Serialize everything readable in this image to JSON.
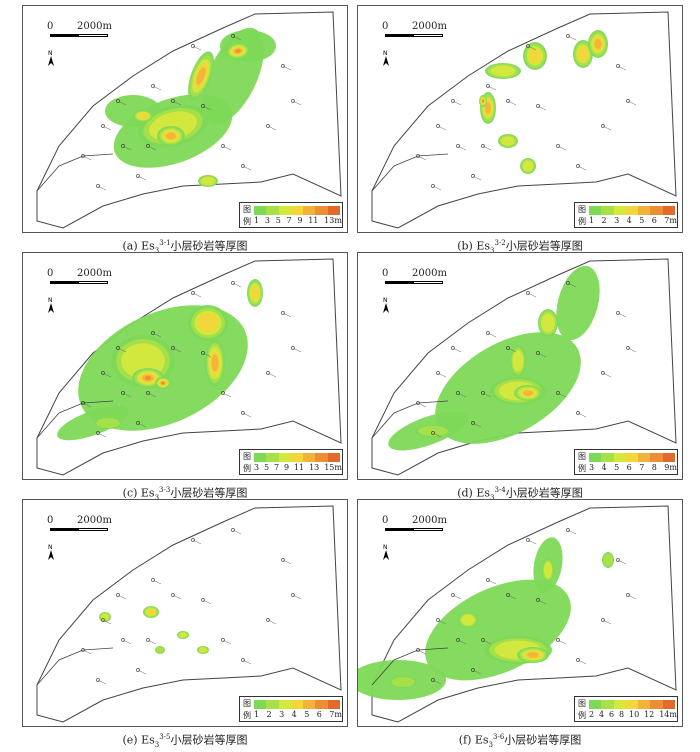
{
  "scale": {
    "zero": "0",
    "distance": "2000m"
  },
  "legend_title": {
    "line1": "图",
    "line2": "例"
  },
  "colors": {
    "ramp": [
      "#7ed957",
      "#a8e04a",
      "#d4e83e",
      "#f2d63a",
      "#f2b23a",
      "#ee8e34",
      "#e46a2b",
      "#d7432a"
    ]
  },
  "panels": [
    {
      "id": "a",
      "caption": {
        "prefix": "(a) Es",
        "sub": "3",
        "sup": "3-1",
        "suffix": "小层砂岩等厚图"
      },
      "legend": {
        "ticks": [
          "1",
          "3",
          "5",
          "7",
          "9",
          "11",
          "13m"
        ]
      }
    },
    {
      "id": "b",
      "caption": {
        "prefix": "(b) Es",
        "sub": "3",
        "sup": "3-2",
        "suffix": "小层砂岩等厚图"
      },
      "legend": {
        "ticks": [
          "1",
          "2",
          "3",
          "4",
          "5",
          "6",
          "7m"
        ]
      }
    },
    {
      "id": "c",
      "caption": {
        "prefix": "(c) Es",
        "sub": "3",
        "sup": "3-3",
        "suffix": "小层砂岩等厚图"
      },
      "legend": {
        "ticks": [
          "3",
          "5",
          "7",
          "9",
          "11",
          "13",
          "15m"
        ]
      }
    },
    {
      "id": "d",
      "caption": {
        "prefix": "(d) Es",
        "sub": "3",
        "sup": "3-4",
        "suffix": "小层砂岩等厚图"
      },
      "legend": {
        "ticks": [
          "3",
          "4",
          "5",
          "6",
          "7",
          "8",
          "9m"
        ]
      }
    },
    {
      "id": "e",
      "caption": {
        "prefix": "(e) Es",
        "sub": "3",
        "sup": "3-5",
        "suffix": "小层砂岩等厚图"
      },
      "legend": {
        "ticks": [
          "1",
          "2",
          "3",
          "4",
          "5",
          "6",
          "7m"
        ]
      }
    },
    {
      "id": "f",
      "caption": {
        "prefix": "(f) Es",
        "sub": "3",
        "sup": "3-6",
        "suffix": "小层砂岩等厚图"
      },
      "legend": {
        "ticks": [
          "2",
          "4",
          "6",
          "8",
          "10",
          "12",
          "14m"
        ]
      }
    }
  ]
}
